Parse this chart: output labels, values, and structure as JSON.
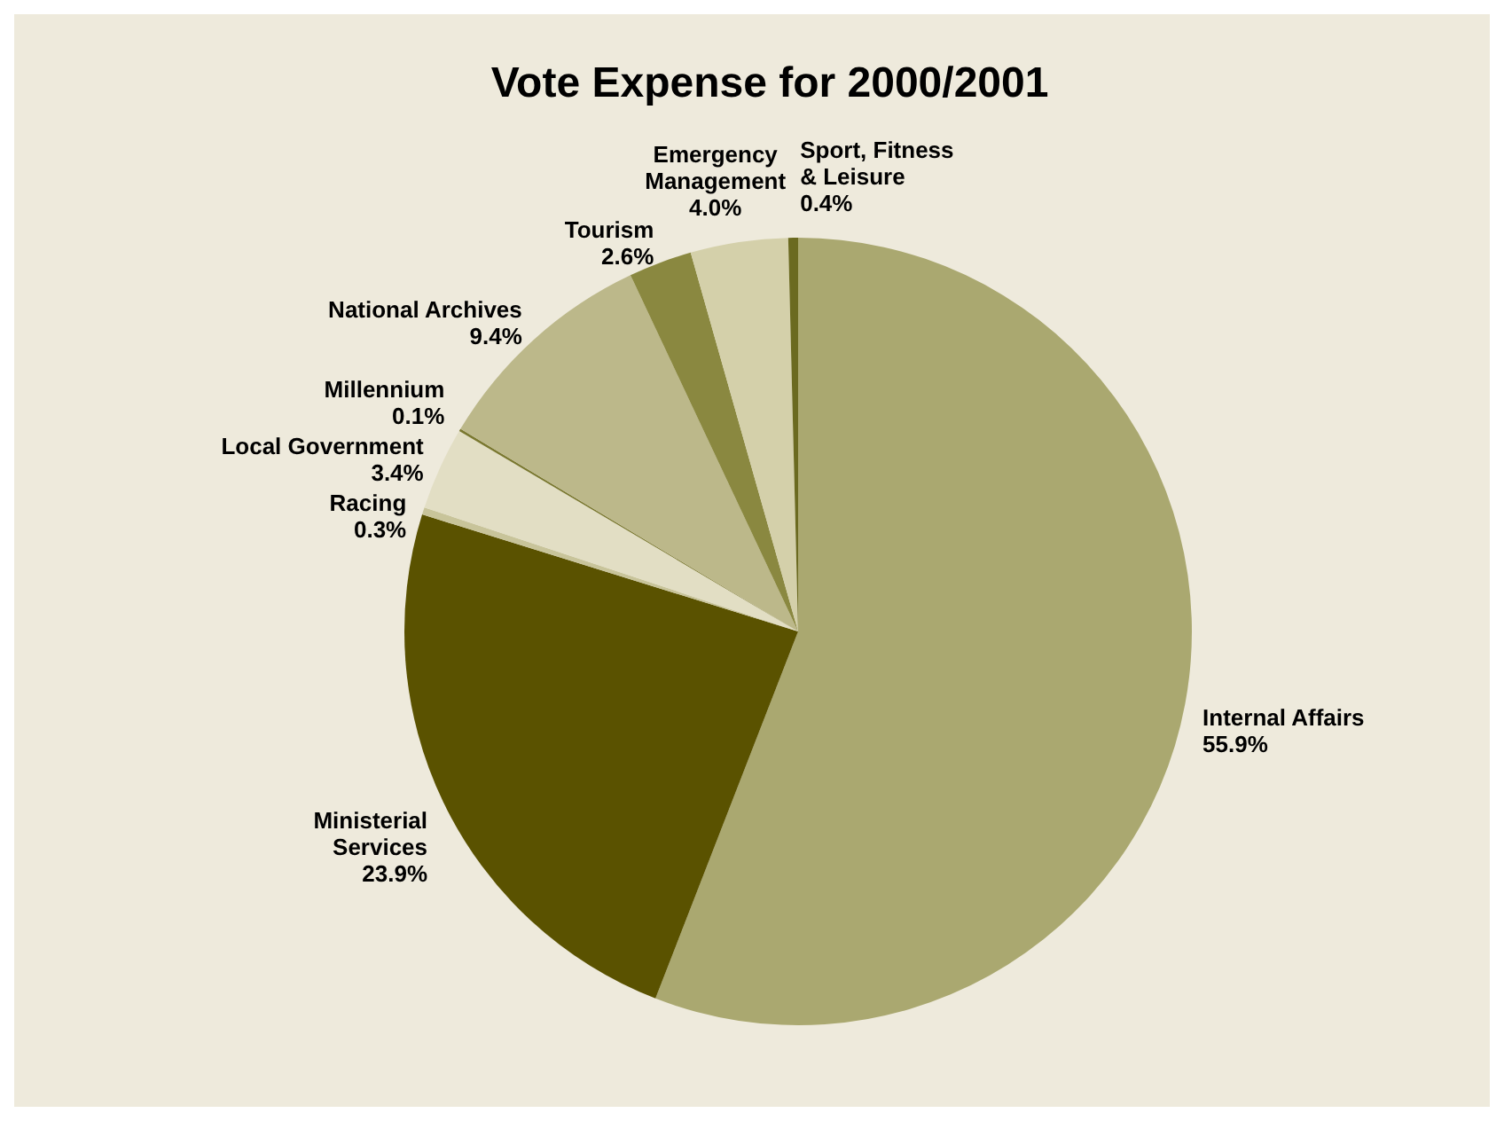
{
  "chart_data": {
    "type": "pie",
    "title": "Vote Expense for 2000/2001",
    "categories": [
      "Internal Affairs",
      "Ministerial Services",
      "Racing",
      "Local Government",
      "Millennium",
      "National Archives",
      "Tourism",
      "Emergency Management",
      "Sport, Fitness & Leisure"
    ],
    "values": [
      55.9,
      23.9,
      0.3,
      3.4,
      0.1,
      9.4,
      2.6,
      4.0,
      0.4
    ],
    "value_labels": [
      "55.9%",
      "23.9%",
      "0.3%",
      "3.4%",
      "0.1%",
      "9.4%",
      "2.6%",
      "4.0%",
      "0.4%"
    ],
    "colors": [
      "#aaa870",
      "#5a5200",
      "#c8c49a",
      "#e2dec4",
      "#7a7830",
      "#bcb88a",
      "#8a8840",
      "#d4d0aa",
      "#6b6a20"
    ],
    "legend": false
  }
}
